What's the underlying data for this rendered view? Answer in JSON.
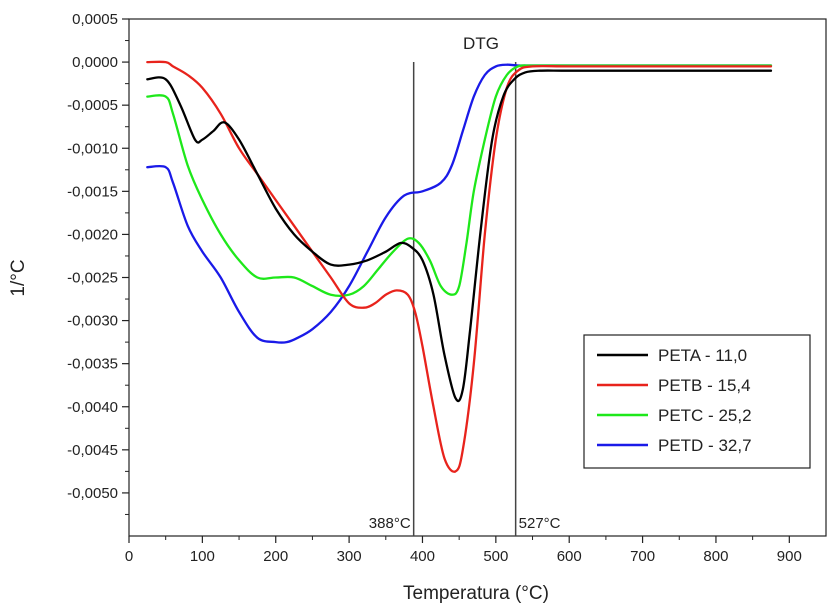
{
  "chart_data": {
    "type": "line",
    "title": "DTG",
    "xlabel": "Temperatura (°C)",
    "ylabel": "1/°C",
    "xlim": [
      0,
      950
    ],
    "ylim": [
      -0.0055,
      0.0005
    ],
    "xticks": [
      0,
      100,
      200,
      300,
      400,
      500,
      600,
      700,
      800,
      900
    ],
    "yticks": [
      0.0005,
      0.0,
      -0.0005,
      -0.001,
      -0.0015,
      -0.002,
      -0.0025,
      -0.003,
      -0.0035,
      -0.004,
      -0.0045,
      -0.005
    ],
    "xtick_labels": [
      "0",
      "100",
      "200",
      "300",
      "400",
      "500",
      "600",
      "700",
      "800",
      "900"
    ],
    "ytick_labels": [
      "0,0005",
      "0,0000",
      "-0,0005",
      "-0,0010",
      "-0,0015",
      "-0,0020",
      "-0,0025",
      "-0,0030",
      "-0,0035",
      "-0,0040",
      "-0,0045",
      "-0,0050"
    ],
    "grid": false,
    "legend_position": "bottom-right",
    "annotations": [
      {
        "x": 388,
        "label": "388°C"
      },
      {
        "x": 527,
        "label": "527°C"
      }
    ],
    "series": [
      {
        "name": "PETA - 11,0",
        "color": "#000000",
        "x": [
          25,
          50,
          70,
          90,
          100,
          115,
          130,
          150,
          175,
          200,
          225,
          250,
          275,
          300,
          325,
          350,
          370,
          385,
          400,
          415,
          430,
          445,
          455,
          465,
          480,
          495,
          510,
          525,
          540,
          560,
          600,
          700,
          800,
          875
        ],
        "y": [
          -0.0002,
          -0.0002,
          -0.0005,
          -0.0009,
          -0.0009,
          -0.0008,
          -0.0007,
          -0.0009,
          -0.0013,
          -0.0017,
          -0.002,
          -0.0022,
          -0.00235,
          -0.00235,
          -0.0023,
          -0.0022,
          -0.0021,
          -0.00215,
          -0.0023,
          -0.0027,
          -0.0034,
          -0.0039,
          -0.0038,
          -0.0031,
          -0.0019,
          -0.0009,
          -0.0004,
          -0.0002,
          -0.00012,
          -0.0001,
          -0.0001,
          -0.0001,
          -0.0001,
          -0.0001
        ]
      },
      {
        "name": "PETB - 15,4",
        "color": "#e8231c",
        "x": [
          25,
          50,
          60,
          80,
          100,
          125,
          150,
          175,
          200,
          225,
          250,
          275,
          300,
          320,
          335,
          350,
          365,
          380,
          390,
          400,
          415,
          430,
          445,
          455,
          470,
          485,
          500,
          515,
          530,
          550,
          600,
          700,
          800,
          875
        ],
        "y": [
          0.0,
          0.0,
          -5e-05,
          -0.00015,
          -0.0003,
          -0.0006,
          -0.001,
          -0.0013,
          -0.0016,
          -0.0019,
          -0.0022,
          -0.0025,
          -0.0028,
          -0.00285,
          -0.0028,
          -0.0027,
          -0.00265,
          -0.0027,
          -0.0029,
          -0.0033,
          -0.004,
          -0.0046,
          -0.00475,
          -0.0045,
          -0.0035,
          -0.002,
          -0.0009,
          -0.0003,
          -0.0001,
          -5e-05,
          -5e-05,
          -5e-05,
          -5e-05,
          -5e-05
        ]
      },
      {
        "name": "PETC - 25,2",
        "color": "#1ee81a",
        "x": [
          25,
          50,
          60,
          80,
          100,
          125,
          150,
          175,
          200,
          225,
          250,
          275,
          300,
          320,
          340,
          360,
          380,
          395,
          410,
          425,
          440,
          450,
          460,
          470,
          485,
          500,
          515,
          530,
          550,
          600,
          700,
          800,
          875
        ],
        "y": [
          -0.0004,
          -0.0004,
          -0.0006,
          -0.0012,
          -0.0016,
          -0.002,
          -0.0023,
          -0.0025,
          -0.0025,
          -0.0025,
          -0.0026,
          -0.0027,
          -0.0027,
          -0.0026,
          -0.0024,
          -0.0022,
          -0.00205,
          -0.0021,
          -0.0023,
          -0.0026,
          -0.0027,
          -0.0026,
          -0.0021,
          -0.0015,
          -0.0009,
          -0.0004,
          -0.00015,
          -5e-05,
          -4e-05,
          -4e-05,
          -4e-05,
          -4e-05,
          -4e-05
        ]
      },
      {
        "name": "PETD - 32,7",
        "color": "#1a1ae8",
        "x": [
          25,
          50,
          60,
          80,
          100,
          125,
          150,
          175,
          200,
          215,
          230,
          250,
          275,
          300,
          325,
          350,
          375,
          400,
          425,
          440,
          455,
          470,
          485,
          500,
          515,
          530,
          550,
          600,
          700,
          800,
          875
        ],
        "y": [
          -0.00122,
          -0.00122,
          -0.0014,
          -0.0019,
          -0.0022,
          -0.0025,
          -0.0029,
          -0.0032,
          -0.00325,
          -0.00325,
          -0.0032,
          -0.0031,
          -0.0029,
          -0.0026,
          -0.0022,
          -0.0018,
          -0.00155,
          -0.0015,
          -0.0014,
          -0.0012,
          -0.0008,
          -0.0004,
          -0.00015,
          -5e-05,
          -3e-05,
          -4e-05,
          -4e-05,
          -4e-05,
          -4e-05,
          -4e-05,
          -4e-05
        ]
      }
    ]
  }
}
